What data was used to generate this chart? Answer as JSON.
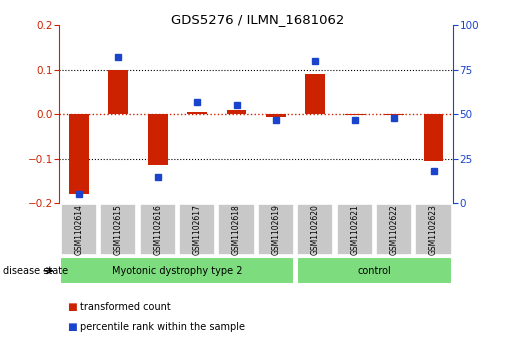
{
  "title": "GDS5276 / ILMN_1681062",
  "categories": [
    "GSM1102614",
    "GSM1102615",
    "GSM1102616",
    "GSM1102617",
    "GSM1102618",
    "GSM1102619",
    "GSM1102620",
    "GSM1102621",
    "GSM1102622",
    "GSM1102623"
  ],
  "red_values": [
    -0.18,
    0.1,
    -0.113,
    0.005,
    0.01,
    -0.005,
    0.09,
    -0.002,
    -0.002,
    -0.105
  ],
  "blue_values": [
    5,
    82,
    15,
    57,
    55,
    47,
    80,
    47,
    48,
    18
  ],
  "ylim_left": [
    -0.2,
    0.2
  ],
  "ylim_right": [
    0,
    100
  ],
  "yticks_left": [
    -0.2,
    -0.1,
    0.0,
    0.1,
    0.2
  ],
  "yticks_right": [
    0,
    25,
    50,
    75,
    100
  ],
  "group1_label": "Myotonic dystrophy type 2",
  "group1_count": 6,
  "group2_label": "control",
  "group2_count": 4,
  "disease_state_label": "disease state",
  "legend1_label": "transformed count",
  "legend2_label": "percentile rank within the sample",
  "bar_color": "#cc2200",
  "dot_color": "#1a44cc",
  "bar_width": 0.5,
  "group1_color": "#7ddc7d",
  "group2_color": "#7ddc7d",
  "label_box_color": "#c8c8c8",
  "left_axis_color": "#cc2200",
  "right_axis_color": "#1a44cc"
}
